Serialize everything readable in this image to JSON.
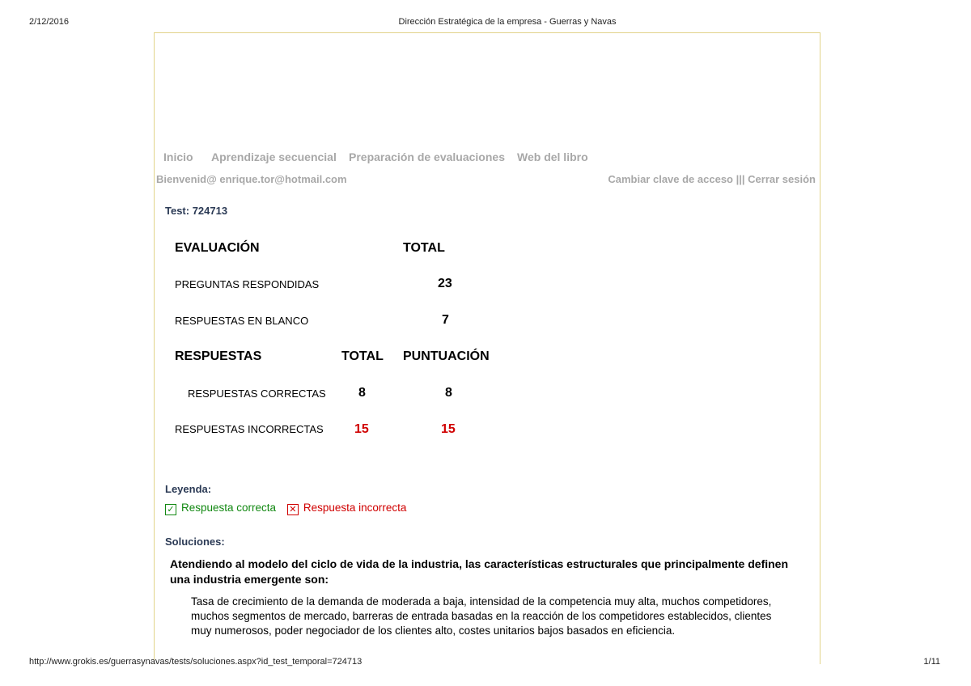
{
  "print_header": {
    "date": "2/12/2016",
    "title": "Dirección Estratégica de la empresa - Guerras y Navas"
  },
  "print_footer": {
    "url": "http://www.grokis.es/guerrasynavas/tests/soluciones.aspx?id_test_temporal=724713",
    "page": "1/11"
  },
  "nav": {
    "items": [
      "Inicio",
      "Aprendizaje secuencial",
      "Preparación de evaluaciones",
      "Web del libro"
    ]
  },
  "user": {
    "welcome": "Bienvenid@ enrique.tor@hotmail.com",
    "change_password": "Cambiar clave de acceso",
    "separator": "|||",
    "logout": "Cerrar sesión"
  },
  "test": {
    "label": "Test: 724713"
  },
  "summary": {
    "eval_header": "EVALUACIÓN",
    "total_header": "TOTAL",
    "answered_label": "PREGUNTAS RESPONDIDAS",
    "answered": "23",
    "blank_label": "RESPUESTAS EN BLANCO",
    "blank": "7",
    "resp_header": "RESPUESTAS",
    "resp_total_header": "TOTAL",
    "score_header": "PUNTUACIÓN",
    "correct_label": "RESPUESTAS CORRECTAS",
    "correct_total": "8",
    "correct_score": "8",
    "incorrect_label": "RESPUESTAS INCORRECTAS",
    "incorrect_total": "15",
    "incorrect_score": "15"
  },
  "legend": {
    "title": "Leyenda:",
    "correct": "Respuesta correcta",
    "incorrect": "Respuesta incorrecta",
    "correct_mark": "✓",
    "incorrect_mark": "✕"
  },
  "solutions": {
    "title": "Soluciones:",
    "question": "Atendiendo al modelo del ciclo de vida de la industria, las características estructurales que principalmente definen una industria emergente son:",
    "answer": "Tasa de crecimiento de la demanda de moderada a baja, intensidad de la competencia muy alta, muchos competidores, muchos segmentos de mercado, barreras de entrada basadas en la reacción de los competidores establecidos, clientes muy numerosos, poder negociador de los clientes alto, costes unitarios bajos basados en eficiencia."
  },
  "colors": {
    "frame": "#e2d38a",
    "nav": "#a8a8a8",
    "heading": "#2b3a55",
    "correct": "#118811",
    "incorrect": "#d00000"
  }
}
